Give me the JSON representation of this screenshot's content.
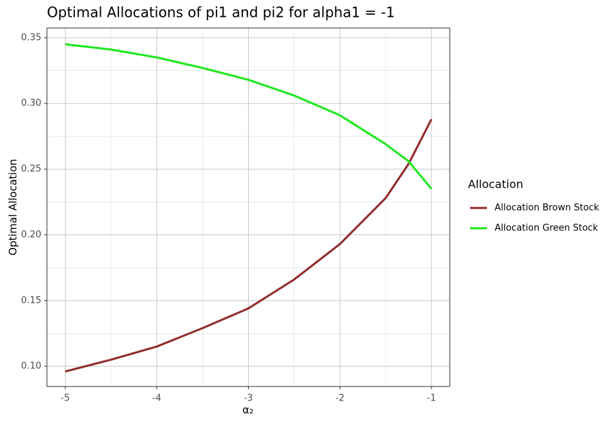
{
  "chart_data": {
    "type": "line",
    "title": "Optimal Allocations of pi1 and pi2 for alpha1 = -1",
    "x_label": "α₂",
    "y_label": "Optimal Allocation",
    "legend_title": "Allocation",
    "legend_position": "right",
    "grid": true,
    "x": [
      -5,
      -4.5,
      -4,
      -3.5,
      -3,
      -2.5,
      -2,
      -1.5,
      -1.25,
      -1
    ],
    "series": [
      {
        "name": "Allocation Brown Stock",
        "color": "#912c2c",
        "values": [
          0.096,
          0.105,
          0.115,
          0.129,
          0.144,
          0.166,
          0.193,
          0.228,
          0.254,
          0.288
        ]
      },
      {
        "name": "Allocation Green Stock",
        "color": "#1ee81e",
        "values": [
          0.345,
          0.341,
          0.335,
          0.327,
          0.318,
          0.306,
          0.291,
          0.269,
          0.256,
          0.235
        ]
      }
    ],
    "xlim": [
      -5.2,
      -0.8
    ],
    "xticks": [
      -5,
      -4,
      -3,
      -2,
      -1
    ],
    "ylim": [
      0.0846,
      0.3574
    ],
    "yticks": [
      {
        "value": 0.1,
        "label": "0.10"
      },
      0.15,
      {
        "value": 0.2,
        "label": "0.20"
      },
      0.25,
      {
        "value": 0.3,
        "label": "0.30"
      },
      0.35
    ]
  }
}
